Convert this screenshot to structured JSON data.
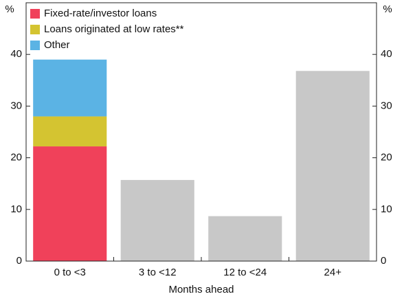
{
  "chart_data": {
    "type": "stacked_bar",
    "y_unit": "%",
    "x_label": "Months ahead",
    "categories": [
      "0 to <3",
      "3 to <12",
      "12 to <24",
      "24+"
    ],
    "series": [
      {
        "name": "Fixed-rate/investor loans",
        "color": "#f0415a",
        "values": [
          22.2,
          null,
          null,
          null
        ]
      },
      {
        "name": "Loans originated at low rates**",
        "color": "#d4c431",
        "values": [
          5.8,
          null,
          null,
          null
        ]
      },
      {
        "name": "Other",
        "color": "#5bb3e4",
        "values": [
          11,
          null,
          null,
          null
        ]
      },
      {
        "color": "#c8c8c8",
        "values": [
          null,
          15.7,
          8.7,
          36.8
        ]
      }
    ],
    "ylim": [
      0,
      50
    ],
    "yticks": [
      0,
      10,
      20,
      30,
      40
    ]
  }
}
